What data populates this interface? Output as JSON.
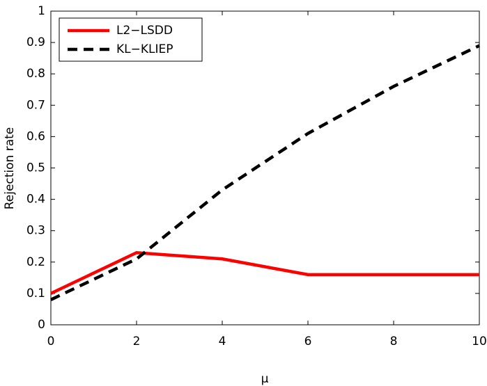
{
  "chart_data": {
    "type": "line",
    "x_label": "μ",
    "y_label": "Rejection rate",
    "x": [
      0,
      2,
      4,
      6,
      8,
      10
    ],
    "series": [
      {
        "name": "L2−LSDD",
        "color": "#ff0000",
        "dash": "solid",
        "values": [
          0.1,
          0.23,
          0.21,
          0.16,
          0.16,
          0.16
        ]
      },
      {
        "name": "KL−KLIEP",
        "color": "#000000",
        "dash": "dashed",
        "values": [
          0.08,
          0.21,
          0.43,
          0.61,
          0.76,
          0.89
        ]
      }
    ],
    "xlim": [
      0,
      10
    ],
    "xticks": [
      0,
      2,
      4,
      6,
      8,
      10
    ],
    "ylim": [
      0,
      1
    ],
    "yticks": [
      0,
      0.1,
      0.2,
      0.3,
      0.4,
      0.5,
      0.6,
      0.7,
      0.8,
      0.9,
      1
    ],
    "legend": "upper left",
    "grid": false
  }
}
